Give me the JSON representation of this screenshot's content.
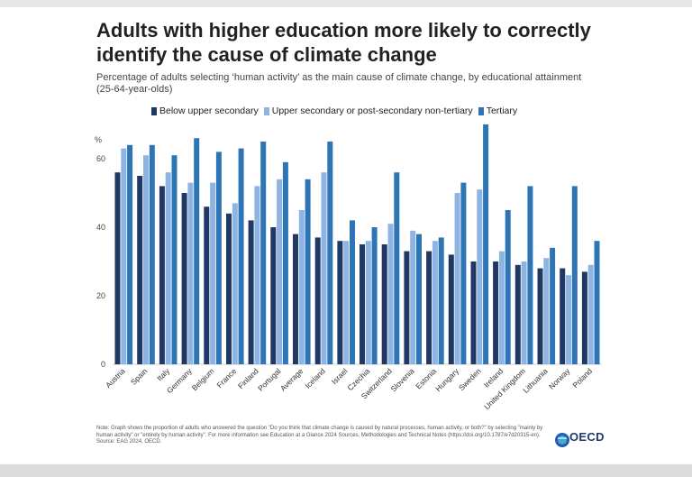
{
  "title": "Adults with higher education more likely to correctly identify the cause of climate change",
  "subtitle": "Percentage of adults selecting ‘human activity’ as the main cause of climate change, by educational attainment (25-64-year-olds)",
  "note": "Note: Graph shows the proportion of adults who answered the question \"Do you think that climate change is caused by natural processes, human activity, or both?\" by selecting \"mainly by human activity\" or \"entirely by human activity\". For more information see Education at a Glance 2024 Sources, Methodologies and Technical Notes (https://doi.org/10.1787/e7d20315-en). Source: EAG 2024, OECD.",
  "logo": {
    "text": "OECD",
    "tagline": "BETTER POLICIES FOR BETTER LIVES"
  },
  "colors": {
    "below": "#1f3864",
    "upper": "#8eb4e3",
    "tertiary": "#2e75b6"
  },
  "chart_data": {
    "type": "bar",
    "title": "Adults with higher education more likely to correctly identify the cause of climate change",
    "ylabel": "%",
    "xlabel": "",
    "ylim": [
      0,
      70
    ],
    "yticks": [
      0,
      20,
      40,
      60
    ],
    "grid": false,
    "legend_position": "top",
    "categories": [
      "Austria",
      "Spain",
      "Italy",
      "Germany",
      "Belgium",
      "France",
      "Finland",
      "Portugal",
      "Average",
      "Iceland",
      "Israel",
      "Czechia",
      "Switzerland",
      "Slovenia",
      "Estonia",
      "Hungary",
      "Sweden",
      "Ireland",
      "United Kingdom",
      "Lithuania",
      "Norway",
      "Poland"
    ],
    "series": [
      {
        "name": "Below upper secondary",
        "color": "#1f3864",
        "values": [
          56,
          55,
          52,
          50,
          46,
          44,
          42,
          40,
          38,
          37,
          36,
          35,
          35,
          33,
          33,
          32,
          30,
          30,
          29,
          28,
          28,
          27
        ]
      },
      {
        "name": "Upper secondary or post-secondary non-tertiary",
        "color": "#8eb4e3",
        "values": [
          63,
          61,
          56,
          53,
          53,
          47,
          52,
          54,
          45,
          56,
          36,
          36,
          41,
          39,
          36,
          50,
          51,
          33,
          30,
          31,
          26,
          29
        ]
      },
      {
        "name": "Tertiary",
        "color": "#2e75b6",
        "values": [
          64,
          64,
          61,
          66,
          62,
          63,
          65,
          59,
          54,
          65,
          42,
          40,
          56,
          38,
          37,
          53,
          70,
          45,
          52,
          34,
          52,
          36
        ]
      }
    ]
  }
}
